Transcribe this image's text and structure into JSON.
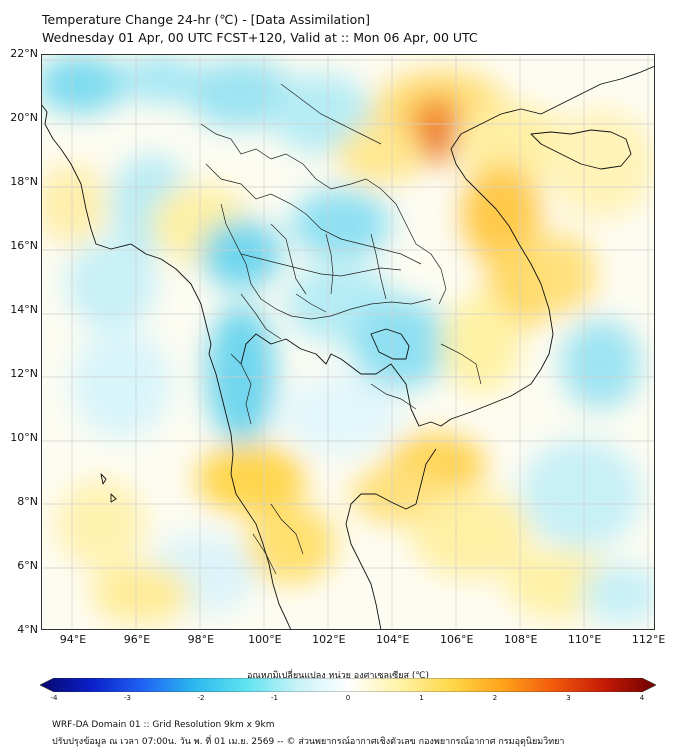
{
  "header": {
    "title_line1": "Temperature Change 24-hr (℃) - [Data Assimilation]",
    "title_line2": "Wednesday 01 Apr, 00 UTC FCST+120, Valid at :: Mon 06 Apr, 00 UTC"
  },
  "map": {
    "lat_labels": [
      "22°N",
      "20°N",
      "18°N",
      "16°N",
      "14°N",
      "12°N",
      "10°N",
      "8°N",
      "6°N",
      "4°N"
    ],
    "lon_labels": [
      "94°E",
      "96°E",
      "98°E",
      "100°E",
      "102°E",
      "104°E",
      "106°E",
      "108°E",
      "110°E",
      "112°E"
    ],
    "lat_range": [
      4,
      22
    ],
    "lon_range": [
      93,
      112.2
    ],
    "colors": {
      "background": "#fdfdf8",
      "land_border": "#111111",
      "province_border": "#222222",
      "grid": "#cfcfcf"
    }
  },
  "colorbar": {
    "title": "อุณหภูมิเปลี่ยนแปลง หน่วย องศาเซลเซียส (℃)",
    "ticks": [
      "-4",
      "-3",
      "-2",
      "-1",
      "0",
      "1",
      "2",
      "3",
      "4"
    ],
    "range": [
      -4,
      4
    ],
    "stops": [
      "#08086b",
      "#0a1fc9",
      "#1f63f5",
      "#2cb8ee",
      "#5ee3f0",
      "#c7f2f8",
      "#ffffff",
      "#fff3a8",
      "#ffd84a",
      "#ffa31a",
      "#f25a0c",
      "#c41a05",
      "#6e0000"
    ]
  },
  "footer": {
    "line1": "WRF-DA Domain 01 :: Grid Resolution 9km x 9km",
    "line2": "ปรับปรุงข้อมูล ณ เวลา 07:00น. วัน พ. ที่ 01 เม.ย. 2569 -- © ส่วนพยากรณ์อากาศเชิงตัวเลข กองพยากรณ์อากาศ กรมอุตุนิยมวิทยา"
  }
}
